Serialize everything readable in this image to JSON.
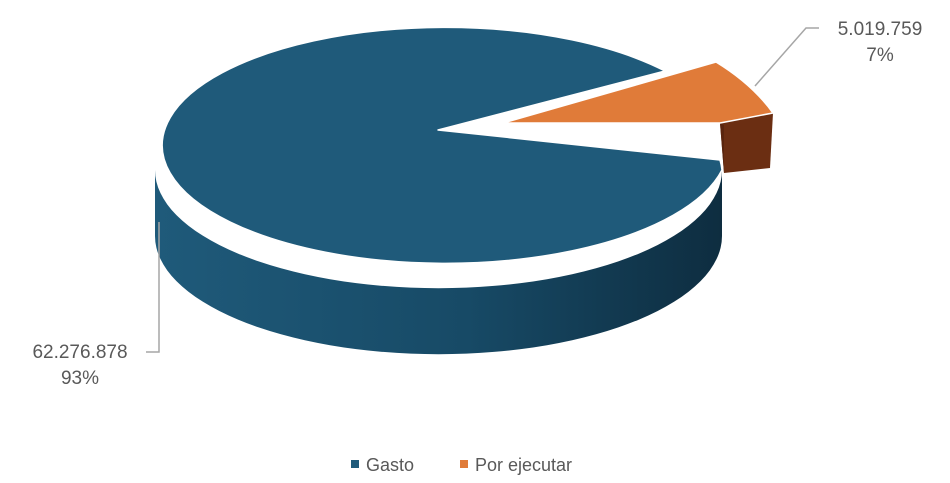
{
  "chart_data": {
    "type": "pie",
    "style": "3d-exploded",
    "title": "",
    "slices": [
      {
        "name": "Gasto",
        "value": 62276878,
        "value_label": "62.276.878",
        "percent_label": "93%",
        "color": "#1f5a7a",
        "exploded": false
      },
      {
        "name": "Por ejecutar",
        "value": 5019759,
        "value_label": "5.019.759",
        "percent_label": "7%",
        "color": "#e07b39",
        "exploded": true
      }
    ],
    "legend": {
      "position": "bottom",
      "entries": [
        "Gasto",
        "Por ejecutar"
      ]
    }
  }
}
